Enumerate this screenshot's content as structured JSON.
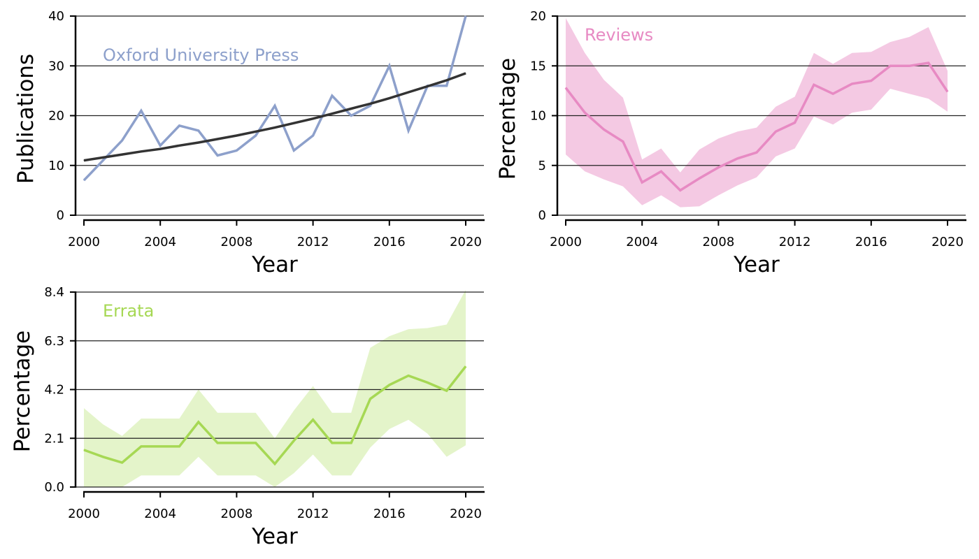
{
  "chart_data": [
    {
      "type": "line",
      "title": "",
      "xlabel": "Year",
      "ylabel": "Publications",
      "annotation": "Oxford University Press",
      "xlim": [
        2000,
        2020
      ],
      "ylim": [
        0,
        40
      ],
      "xticks": [
        "2000",
        "2004",
        "2008",
        "2012",
        "2016",
        "2020"
      ],
      "yticks": [
        "0",
        "10",
        "20",
        "30",
        "40"
      ],
      "grid": "horizontal",
      "x": [
        2000,
        2001,
        2002,
        2003,
        2004,
        2005,
        2006,
        2007,
        2008,
        2009,
        2010,
        2011,
        2012,
        2013,
        2014,
        2015,
        2016,
        2017,
        2018,
        2019,
        2020
      ],
      "series": [
        {
          "color": "#8DA0CB",
          "values": [
            7,
            11,
            15,
            21,
            14,
            18,
            17,
            12,
            13,
            16,
            22,
            13,
            16,
            24,
            20,
            22,
            30,
            17,
            26,
            26,
            40
          ]
        },
        {
          "color": "#333333",
          "values": [
            11.0,
            11.6,
            12.2,
            12.8,
            13.3,
            14.0,
            14.6,
            15.3,
            16.0,
            16.8,
            17.6,
            18.5,
            19.4,
            20.4,
            21.4,
            22.4,
            23.5,
            24.7,
            25.9,
            27.1,
            28.5
          ]
        }
      ]
    },
    {
      "type": "line",
      "title": "",
      "xlabel": "Year",
      "ylabel": "Percentage",
      "annotation": "Reviews",
      "xlim": [
        2000,
        2020
      ],
      "ylim": [
        0,
        20
      ],
      "xticks": [
        "2000",
        "2004",
        "2008",
        "2012",
        "2016",
        "2020"
      ],
      "yticks": [
        "0",
        "5",
        "10",
        "15",
        "20"
      ],
      "grid": "horizontal",
      "x": [
        2000,
        2001,
        2002,
        2003,
        2004,
        2005,
        2006,
        2007,
        2008,
        2009,
        2010,
        2011,
        2012,
        2013,
        2014,
        2015,
        2016,
        2017,
        2018,
        2019,
        2020
      ],
      "series": [
        {
          "color": "#E78AC3",
          "band_color": "#F4C9E3",
          "values": [
            12.8,
            10.3,
            8.6,
            7.4,
            3.3,
            4.4,
            2.5,
            3.7,
            4.8,
            5.7,
            6.3,
            8.4,
            9.3,
            13.1,
            12.2,
            13.2,
            13.5,
            15.0,
            15.0,
            15.3,
            12.4
          ],
          "lower": [
            6.1,
            4.4,
            3.6,
            2.9,
            1.0,
            2.0,
            0.8,
            0.9,
            2.0,
            3.0,
            3.8,
            5.9,
            6.7,
            9.9,
            9.1,
            10.3,
            10.6,
            12.7,
            12.2,
            11.7,
            10.4
          ],
          "upper": [
            19.8,
            16.3,
            13.6,
            11.8,
            5.6,
            6.7,
            4.3,
            6.6,
            7.7,
            8.4,
            8.8,
            10.9,
            11.9,
            16.3,
            15.2,
            16.3,
            16.4,
            17.4,
            17.9,
            18.9,
            14.5
          ]
        }
      ]
    },
    {
      "type": "line",
      "title": "",
      "xlabel": "Year",
      "ylabel": "Percentage",
      "annotation": "Errata",
      "xlim": [
        2000,
        2020
      ],
      "ylim": [
        0,
        8.4
      ],
      "xticks": [
        "2000",
        "2004",
        "2008",
        "2012",
        "2016",
        "2020"
      ],
      "yticks": [
        "0.0",
        "2.1",
        "4.2",
        "6.3",
        "8.4"
      ],
      "grid": "horizontal",
      "x": [
        2000,
        2001,
        2002,
        2003,
        2004,
        2005,
        2006,
        2007,
        2008,
        2009,
        2010,
        2011,
        2012,
        2013,
        2014,
        2015,
        2016,
        2017,
        2018,
        2019,
        2020
      ],
      "series": [
        {
          "color": "#A6D854",
          "band_color": "#E4F4CA",
          "values": [
            1.6,
            1.3,
            1.05,
            1.75,
            1.75,
            1.75,
            2.8,
            1.9,
            1.9,
            1.9,
            1.0,
            2.0,
            2.9,
            1.9,
            1.9,
            3.8,
            4.4,
            4.8,
            4.5,
            4.15,
            5.2
          ],
          "lower": [
            0.0,
            0.0,
            0.0,
            0.5,
            0.5,
            0.5,
            1.3,
            0.5,
            0.5,
            0.5,
            0.0,
            0.6,
            1.4,
            0.5,
            0.5,
            1.7,
            2.5,
            2.9,
            2.3,
            1.3,
            1.8
          ],
          "upper": [
            3.4,
            2.7,
            2.2,
            2.95,
            2.95,
            2.95,
            4.2,
            3.2,
            3.2,
            3.2,
            2.1,
            3.3,
            4.35,
            3.2,
            3.2,
            6.0,
            6.5,
            6.8,
            6.85,
            7.0,
            8.5
          ]
        }
      ]
    }
  ]
}
